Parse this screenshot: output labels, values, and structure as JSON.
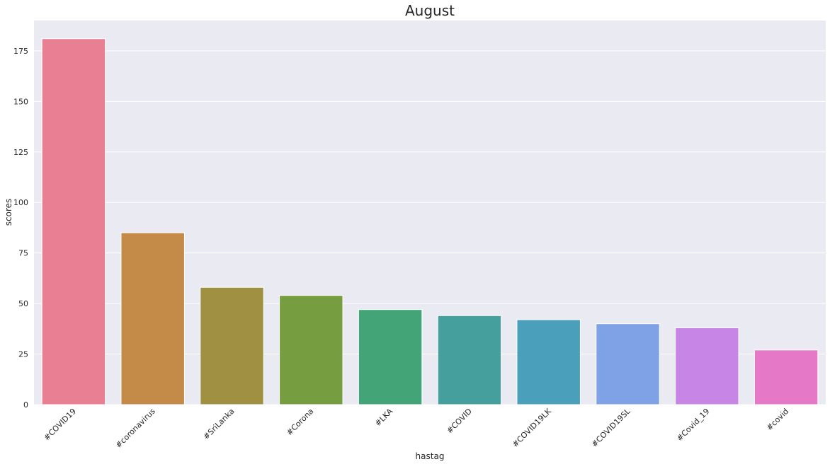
{
  "chart_data": {
    "type": "bar",
    "title": "August",
    "xlabel": "hastag",
    "ylabel": "scores",
    "categories": [
      "#COVID19",
      "#coronavirus",
      "#SriLanka",
      "#Corona",
      "#LKA",
      "#COVID",
      "#COVID19LK",
      "#COVID19SL",
      "#Covid_19",
      "#covid"
    ],
    "values": [
      181,
      85,
      58,
      54,
      47,
      44,
      42,
      40,
      38,
      27
    ],
    "colors": [
      "#e87f92",
      "#c48a48",
      "#a09042",
      "#769d40",
      "#42a477",
      "#45a09d",
      "#4a9fba",
      "#7fa1e6",
      "#c786e6",
      "#e679c7"
    ],
    "ylim": [
      0,
      190
    ],
    "yticks": [
      0,
      25,
      50,
      75,
      100,
      125,
      150,
      175
    ],
    "grid": true,
    "background_color": "#eaeaf2"
  }
}
